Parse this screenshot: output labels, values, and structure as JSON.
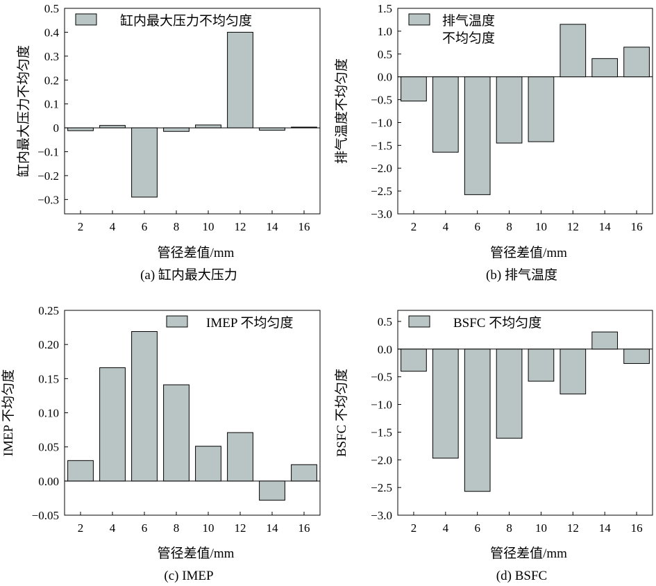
{
  "figure": {
    "bar_color": "#b9c4c4",
    "bar_edge_color": "#000000"
  },
  "chart_data": [
    {
      "id": "a",
      "type": "bar",
      "caption": "(a) 缸内最大压力",
      "xlabel": "管径差值/mm",
      "ylabel": "缸内最大压力不均匀度",
      "legend": [
        "缸内最大压力不均匀度"
      ],
      "legend_position": "top-left",
      "categories": [
        "2",
        "4",
        "6",
        "8",
        "10",
        "12",
        "14",
        "16"
      ],
      "values": [
        -0.012,
        0.01,
        -0.29,
        -0.015,
        0.012,
        0.4,
        -0.01,
        0.003
      ],
      "ylim": [
        -0.36,
        0.5
      ],
      "yticks": [
        -0.3,
        -0.2,
        -0.1,
        0,
        0.1,
        0.2,
        0.3,
        0.4,
        0.5
      ],
      "ytick_labels": [
        "−0.3",
        "−0.2",
        "−0.1",
        "0",
        "0.1",
        "0.2",
        "0.3",
        "0.4",
        "0.5"
      ]
    },
    {
      "id": "b",
      "type": "bar",
      "caption": "(b) 排气温度",
      "xlabel": "管径差值/mm",
      "ylabel": "排气温度不均匀度",
      "legend": [
        "排气温度",
        "不均匀度"
      ],
      "legend_position": "top-left",
      "categories": [
        "2",
        "4",
        "6",
        "8",
        "10",
        "12",
        "14",
        "16"
      ],
      "values": [
        -0.53,
        -1.65,
        -2.58,
        -1.45,
        -1.42,
        1.15,
        0.4,
        0.65
      ],
      "ylim": [
        -3.0,
        1.5
      ],
      "yticks": [
        -3.0,
        -2.5,
        -2.0,
        -1.5,
        -1.0,
        -0.5,
        0,
        0.5,
        1.0,
        1.5
      ],
      "ytick_labels": [
        "−3.0",
        "−2.5",
        "−2.0",
        "−1.5",
        "−1.0",
        "−0.5",
        "0.0",
        "0.5",
        "1.0",
        "1.5"
      ]
    },
    {
      "id": "c",
      "type": "bar",
      "caption": "(c) IMEP",
      "xlabel": "管径差值/mm",
      "ylabel": "IMEP 不均匀度",
      "legend": [
        "IMEP 不均匀度"
      ],
      "legend_position": "top-right",
      "categories": [
        "2",
        "4",
        "6",
        "8",
        "10",
        "12",
        "14",
        "16"
      ],
      "values": [
        0.03,
        0.166,
        0.219,
        0.141,
        0.051,
        0.071,
        -0.028,
        0.024
      ],
      "ylim": [
        -0.05,
        0.25
      ],
      "yticks": [
        -0.05,
        0,
        0.05,
        0.1,
        0.15,
        0.2,
        0.25
      ],
      "ytick_labels": [
        "−0.05",
        "0.00",
        "0.05",
        "0.10",
        "0.15",
        "0.20",
        "0.25"
      ]
    },
    {
      "id": "d",
      "type": "bar",
      "caption": "(d) BSFC",
      "xlabel": "管径差值/mm",
      "ylabel": "BSFC 不均匀度",
      "legend": [
        "BSFC 不均匀度"
      ],
      "legend_position": "top-left",
      "categories": [
        "2",
        "4",
        "6",
        "8",
        "10",
        "12",
        "14",
        "16"
      ],
      "values": [
        -0.4,
        -1.97,
        -2.57,
        -1.61,
        -0.58,
        -0.81,
        0.31,
        -0.26
      ],
      "ylim": [
        -3.0,
        0.7
      ],
      "yticks": [
        -3.0,
        -2.5,
        -2.0,
        -1.5,
        -1.0,
        -0.5,
        0,
        0.5
      ],
      "ytick_labels": [
        "−3.0",
        "−2.5",
        "−2.0",
        "−1.5",
        "−1.0",
        "−0.5",
        "0.0",
        "0.5"
      ]
    }
  ]
}
